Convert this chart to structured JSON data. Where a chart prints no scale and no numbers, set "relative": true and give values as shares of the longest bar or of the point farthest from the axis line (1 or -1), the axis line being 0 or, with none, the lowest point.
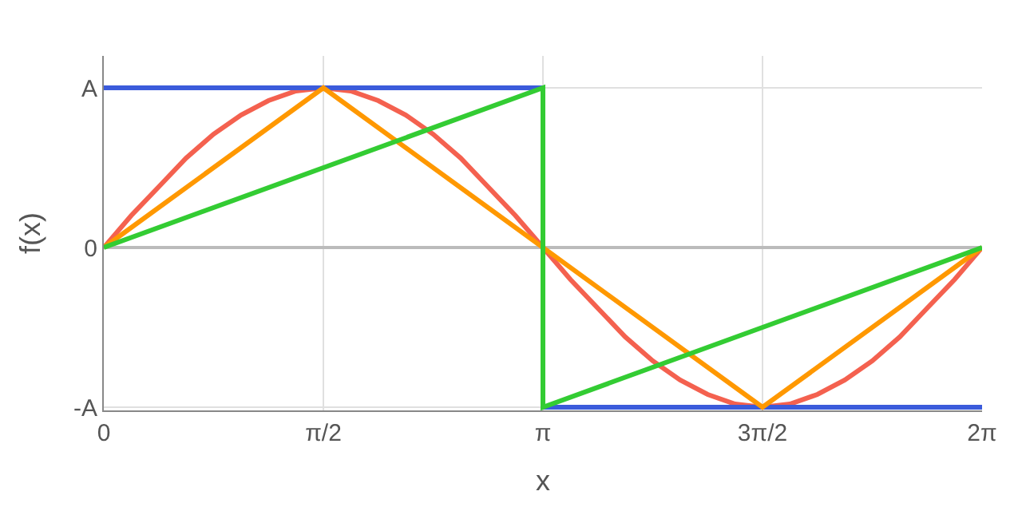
{
  "chart_data": {
    "type": "line",
    "xlabel": "x",
    "ylabel": "f(x)",
    "xlim": [
      0,
      6.2832
    ],
    "relative": true,
    "annotations": [
      "A",
      "0",
      "-A"
    ],
    "xticks": [
      {
        "value": 0,
        "label": "0"
      },
      {
        "value": 1.5708,
        "label": "π/2"
      },
      {
        "value": 3.1416,
        "label": "π"
      },
      {
        "value": 4.7124,
        "label": "3π/2"
      },
      {
        "value": 6.2832,
        "label": "2π"
      }
    ],
    "grid": true,
    "marker": "none",
    "line_style": "solid",
    "series": [
      {
        "color": "#f4614f",
        "x": [
          0,
          0.196,
          0.393,
          0.589,
          0.785,
          0.982,
          1.178,
          1.374,
          1.571,
          1.767,
          1.963,
          2.16,
          2.356,
          2.553,
          2.749,
          2.945,
          3.142,
          3.338,
          3.534,
          3.731,
          3.927,
          4.123,
          4.32,
          4.516,
          4.712,
          4.909,
          5.105,
          5.301,
          5.498,
          5.694,
          5.89,
          6.087,
          6.283
        ],
        "values": [
          0,
          0.2,
          0.38,
          0.56,
          0.71,
          0.83,
          0.92,
          0.98,
          1,
          0.98,
          0.92,
          0.83,
          0.71,
          0.56,
          0.38,
          0.2,
          0,
          -0.2,
          -0.38,
          -0.56,
          -0.71,
          -0.83,
          -0.92,
          -0.98,
          -1,
          -0.98,
          -0.92,
          -0.83,
          -0.71,
          -0.56,
          -0.38,
          -0.2,
          0
        ]
      },
      {
        "color": "#3b5bdb",
        "x": [
          0,
          3.1416,
          3.1416,
          6.2832
        ],
        "values": [
          1,
          1,
          -1,
          -1
        ]
      },
      {
        "color": "#ff9800",
        "x": [
          0,
          1.5708,
          4.7124,
          6.2832
        ],
        "values": [
          0,
          1,
          -1,
          0
        ]
      },
      {
        "color": "#33cc33",
        "x": [
          0,
          3.1416,
          3.1416,
          6.2832
        ],
        "values": [
          0,
          1,
          -1,
          0
        ]
      }
    ]
  }
}
